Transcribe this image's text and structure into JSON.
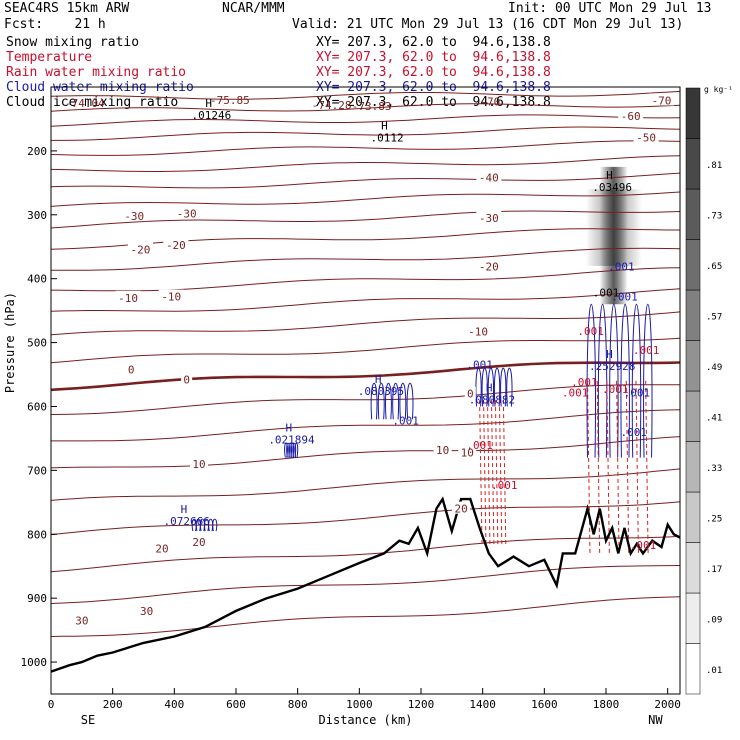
{
  "header": {
    "model": "SEAC4RS 15km ARW",
    "center": "NCAR/MMM",
    "init": "Init: 00 UTC Mon 29 Jul 13",
    "fcst": "Fcst:    21 h",
    "valid": "Valid: 21 UTC Mon 29 Jul 13 (16 CDT Mon 29 Jul 13)"
  },
  "fields": [
    {
      "label": "Snow mixing ratio",
      "xy": "XY= 207.3, 62.0 to  94.6,138.8",
      "color": "#000000"
    },
    {
      "label": "Temperature",
      "xy": "XY= 207.3, 62.0 to  94.6,138.8",
      "color": "#c8102e"
    },
    {
      "label": "Rain water mixing ratio",
      "xy": "XY= 207.3, 62.0 to  94.6,138.8",
      "color": "#c8102e"
    },
    {
      "label": "Cloud water mixing ratio",
      "xy": "XY= 207.3, 62.0 to  94.6,138.8",
      "color": "#1a1aa6"
    },
    {
      "label": "Cloud ice mixing ratio",
      "xy": "XY= 207.3, 62.0 to  94.6,138.8",
      "color": "#000000"
    }
  ],
  "chart_data": {
    "type": "cross-section",
    "xlabel": "Distance (km)",
    "ylabel": "Pressure (hPa)",
    "xlim": [
      0,
      2040
    ],
    "ylim": [
      100,
      1050
    ],
    "y_reversed": true,
    "x_ticks": [
      0,
      200,
      400,
      600,
      800,
      1000,
      1200,
      1400,
      1600,
      1800,
      2000
    ],
    "y_ticks": [
      200,
      300,
      400,
      500,
      600,
      700,
      800,
      900,
      1000
    ],
    "endpoints": {
      "left": "SE",
      "right": "NW"
    },
    "colorbar": {
      "unit": "g kg⁻¹",
      "levels": [
        ".01",
        ".09",
        ".17",
        ".25",
        ".33",
        ".41",
        ".49",
        ".57",
        ".65",
        ".73",
        ".81"
      ]
    },
    "terrain_surface_hpa": {
      "x": [
        0,
        60,
        100,
        150,
        200,
        300,
        400,
        500,
        600,
        700,
        800,
        900,
        1000,
        1080,
        1130,
        1160,
        1190,
        1220,
        1250,
        1270,
        1300,
        1330,
        1360,
        1390,
        1420,
        1450,
        1500,
        1550,
        1600,
        1640,
        1660,
        1700,
        1740,
        1760,
        1780,
        1800,
        1820,
        1840,
        1860,
        1880,
        1900,
        1920,
        1950,
        1980,
        2000,
        2020,
        2040
      ],
      "y": [
        1015,
        1005,
        1000,
        990,
        985,
        970,
        960,
        945,
        920,
        900,
        885,
        865,
        845,
        830,
        810,
        815,
        790,
        830,
        760,
        745,
        795,
        745,
        745,
        790,
        830,
        850,
        835,
        850,
        840,
        880,
        830,
        830,
        760,
        800,
        760,
        810,
        790,
        830,
        790,
        830,
        815,
        830,
        810,
        820,
        785,
        800,
        805
      ]
    },
    "temperature_labels_c": [
      {
        "text": "30",
        "x": 100,
        "p": 935
      },
      {
        "text": "30",
        "x": 310,
        "p": 920
      },
      {
        "text": "20",
        "x": 360,
        "p": 822
      },
      {
        "text": "20",
        "x": 480,
        "p": 812
      },
      {
        "text": "20",
        "x": 1330,
        "p": 760
      },
      {
        "text": "10",
        "x": 480,
        "p": 690
      },
      {
        "text": "10",
        "x": 1270,
        "p": 668
      },
      {
        "text": "10",
        "x": 1350,
        "p": 672
      },
      {
        "text": "0",
        "x": 260,
        "p": 542
      },
      {
        "text": "0",
        "x": 440,
        "p": 558
      },
      {
        "text": "0",
        "x": 1360,
        "p": 580
      },
      {
        "text": "-10",
        "x": 250,
        "p": 430
      },
      {
        "text": "-10",
        "x": 390,
        "p": 428
      },
      {
        "text": "-10",
        "x": 1385,
        "p": 483
      },
      {
        "text": "-20",
        "x": 290,
        "p": 354
      },
      {
        "text": "-20",
        "x": 405,
        "p": 347
      },
      {
        "text": "-20",
        "x": 1420,
        "p": 381
      },
      {
        "text": "-30",
        "x": 270,
        "p": 302
      },
      {
        "text": "-30",
        "x": 440,
        "p": 298
      },
      {
        "text": "-30",
        "x": 1420,
        "p": 305
      },
      {
        "text": "-40",
        "x": 1420,
        "p": 242
      },
      {
        "text": "-50",
        "x": 1930,
        "p": 179
      },
      {
        "text": "-60",
        "x": 1880,
        "p": 145
      },
      {
        "text": "-70",
        "x": 1980,
        "p": 121
      }
    ],
    "extra_labels": [
      {
        "text": "-74.04",
        "x": 110,
        "p": 125
      },
      {
        "text": "-75.85",
        "x": 580,
        "p": 120
      },
      {
        "text": "-74.28",
        "x": 910,
        "p": 128
      },
      {
        "text": "-73.83",
        "x": 1040,
        "p": 130
      },
      {
        "text": "-70",
        "x": 1425,
        "p": 123
      }
    ],
    "maxima": [
      {
        "text": ".01246",
        "x": 520,
        "p": 147,
        "color": "#000000"
      },
      {
        "text": ".0112",
        "x": 1090,
        "p": 182,
        "color": "#000000"
      },
      {
        "text": ".03496",
        "x": 1820,
        "p": 260,
        "color": "#000000"
      },
      {
        "text": ".021894",
        "x": 780,
        "p": 655,
        "color": "#1a1aa6"
      },
      {
        "text": ".072666",
        "x": 440,
        "p": 782,
        "color": "#1a1aa6"
      },
      {
        "text": ".080395",
        "x": 1070,
        "p": 579,
        "color": "#1a1aa6"
      },
      {
        "text": ".080882",
        "x": 1430,
        "p": 592,
        "color": "#1a1aa6"
      },
      {
        "text": ".252928",
        "x": 1820,
        "p": 540,
        "color": "#1a1aa6"
      }
    ],
    "contour_labels": [
      {
        "text": ".001",
        "x": 1390,
        "p": 534,
        "color": "#1a1aa6"
      },
      {
        "text": ".001",
        "x": 1150,
        "p": 622,
        "color": "#1a1aa6"
      },
      {
        "text": ".001",
        "x": 1390,
        "p": 660,
        "color": "#c8102e"
      },
      {
        "text": ".001",
        "x": 1470,
        "p": 723,
        "color": "#c8102e"
      },
      {
        "text": ".001",
        "x": 1700,
        "p": 578,
        "color": "#c8102e"
      },
      {
        "text": ".001",
        "x": 1730,
        "p": 562,
        "color": "#c8102e"
      },
      {
        "text": ".001",
        "x": 1750,
        "p": 482,
        "color": "#c8102e"
      },
      {
        "text": ".001",
        "x": 1830,
        "p": 573,
        "color": "#c8102e"
      },
      {
        "text": ".001",
        "x": 1900,
        "p": 578,
        "color": "#1a1aa6"
      },
      {
        "text": ".001",
        "x": 1890,
        "p": 640,
        "color": "#1a1aa6"
      },
      {
        "text": ".001",
        "x": 1920,
        "p": 817,
        "color": "#c8102e"
      },
      {
        "text": ".001",
        "x": 1930,
        "p": 512,
        "color": "#c8102e"
      },
      {
        "text": ".001",
        "x": 1850,
        "p": 381,
        "color": "#1a1aa6"
      },
      {
        "text": ".001",
        "x": 1860,
        "p": 428,
        "color": "#1a1aa6"
      },
      {
        "text": ".001",
        "x": 1800,
        "p": 422,
        "color": "#000000"
      }
    ],
    "snow_max_x": 1825,
    "snow_max_p": 300
  }
}
